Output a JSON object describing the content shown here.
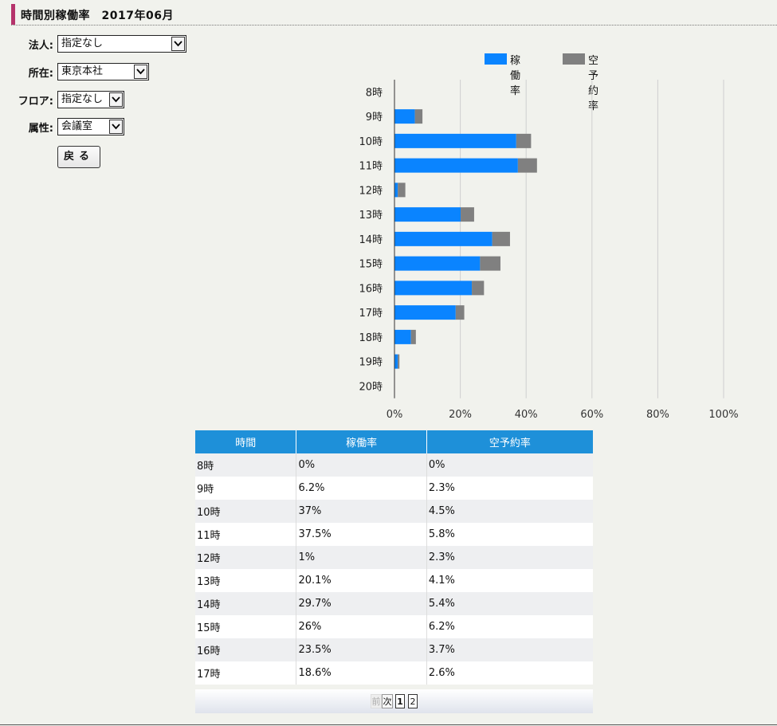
{
  "page": {
    "title": "時間別稼働率　2017年06月"
  },
  "filters": [
    {
      "label": "法人:",
      "value": "指定なし"
    },
    {
      "label": "所在:",
      "value": "東京本社"
    },
    {
      "label": "フロア:",
      "value": "指定なし"
    },
    {
      "label": "属性:",
      "value": "会議室"
    }
  ],
  "back_button": "戻る",
  "colors": {
    "utilization": "#0a84ff",
    "empty_reservation": "#808080",
    "accent": "#b5336b",
    "table_header": "#1e90d9"
  },
  "chart_data": {
    "type": "bar",
    "orientation": "horizontal",
    "stacked": true,
    "categories": [
      "8時",
      "9時",
      "10時",
      "11時",
      "12時",
      "13時",
      "14時",
      "15時",
      "16時",
      "17時",
      "18時",
      "19時",
      "20時"
    ],
    "series": [
      {
        "name": "稼働率",
        "values": [
          0,
          6.2,
          37,
          37.5,
          1,
          20.1,
          29.7,
          26,
          23.5,
          18.6,
          5,
          1,
          0
        ]
      },
      {
        "name": "空予約率",
        "values": [
          0,
          2.3,
          4.5,
          5.8,
          2.3,
          4.1,
          5.4,
          6.2,
          3.7,
          2.6,
          1.5,
          0.5,
          0
        ]
      }
    ],
    "xlim": [
      0,
      100
    ],
    "xticks": [
      "0%",
      "20%",
      "40%",
      "60%",
      "80%",
      "100%"
    ],
    "grid": true,
    "legend": "top"
  },
  "table": {
    "headers": [
      "時間",
      "稼働率",
      "空予約率"
    ],
    "rows": [
      [
        "8時",
        "0%",
        "0%"
      ],
      [
        "9時",
        "6.2%",
        "2.3%"
      ],
      [
        "10時",
        "37%",
        "4.5%"
      ],
      [
        "11時",
        "37.5%",
        "5.8%"
      ],
      [
        "12時",
        "1%",
        "2.3%"
      ],
      [
        "13時",
        "20.1%",
        "4.1%"
      ],
      [
        "14時",
        "29.7%",
        "5.4%"
      ],
      [
        "15時",
        "26%",
        "6.2%"
      ],
      [
        "16時",
        "23.5%",
        "3.7%"
      ],
      [
        "17時",
        "18.6%",
        "2.6%"
      ]
    ]
  },
  "pager": {
    "prev": "前",
    "next": "次",
    "pages": [
      "1",
      "2"
    ]
  }
}
